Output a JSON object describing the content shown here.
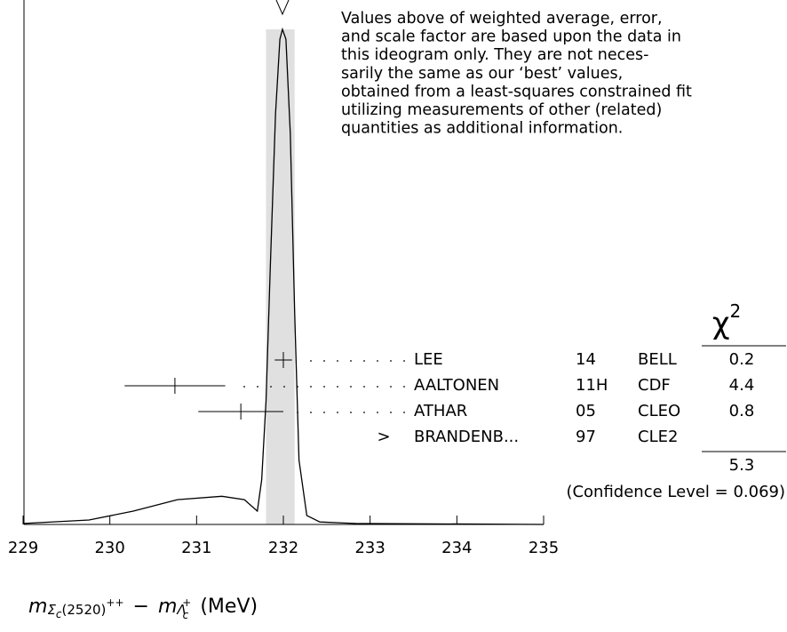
{
  "chart_data": {
    "type": "ideogram",
    "xlim": [
      229,
      235
    ],
    "xticks": [
      229,
      230,
      231,
      232,
      233,
      234,
      235
    ],
    "ylim": [
      0,
      1
    ],
    "average_band": [
      231.8,
      232.13
    ],
    "ideogram": {
      "x": [
        229.01,
        229.76,
        230.27,
        230.78,
        231.29,
        231.55,
        231.7,
        231.75,
        231.8,
        231.85,
        231.91,
        231.96,
        231.99,
        232.03,
        232.08,
        232.13,
        232.18,
        232.27,
        232.42,
        232.83,
        235.0
      ],
      "values": [
        0.002,
        0.009,
        0.027,
        0.05,
        0.057,
        0.05,
        0.027,
        0.09,
        0.25,
        0.52,
        0.83,
        0.98,
        1.0,
        0.98,
        0.79,
        0.43,
        0.13,
        0.018,
        0.005,
        0.002,
        0
      ]
    },
    "note": [
      "Values above of weighted average, error,",
      "and scale factor are based upon the data in",
      "this ideogram only.  They are not neces-",
      "sarily the same as our ‘best’ values,",
      "obtained from a least-squares constrained fit",
      "utilizing measurements of other (related)",
      "quantities as additional information."
    ],
    "chi2_header": "χ",
    "chi2_header_sup": "2",
    "measurements": [
      {
        "name": "LEE",
        "ref": "14",
        "experiment": "BELL",
        "value": 232.0,
        "error": 0.1,
        "chi2": 0.2
      },
      {
        "name": "AALTONEN",
        "ref": "11H",
        "experiment": "CDF",
        "value": 230.75,
        "error": 0.58,
        "chi2": 4.4
      },
      {
        "name": "ATHAR",
        "ref": "05",
        "experiment": "CLEO",
        "value": 231.51,
        "error": 0.49,
        "chi2": 0.8
      },
      {
        "name": "BRANDENB...",
        "ref": "97",
        "experiment": "CLE2",
        "marker": ">",
        "chi2": null
      }
    ],
    "chi2_total": 5.3,
    "confidence_level": "(Confidence Level = 0.069)",
    "x_label": {
      "m1": "m",
      "s1": "Σ",
      "s1c": "c",
      "s1n": "(2520)",
      "p1": "++",
      "minus": "−",
      "m2": "m",
      "s2": "Λ",
      "s2c": "c",
      "p2": "+",
      "unit": "(MeV)"
    }
  }
}
